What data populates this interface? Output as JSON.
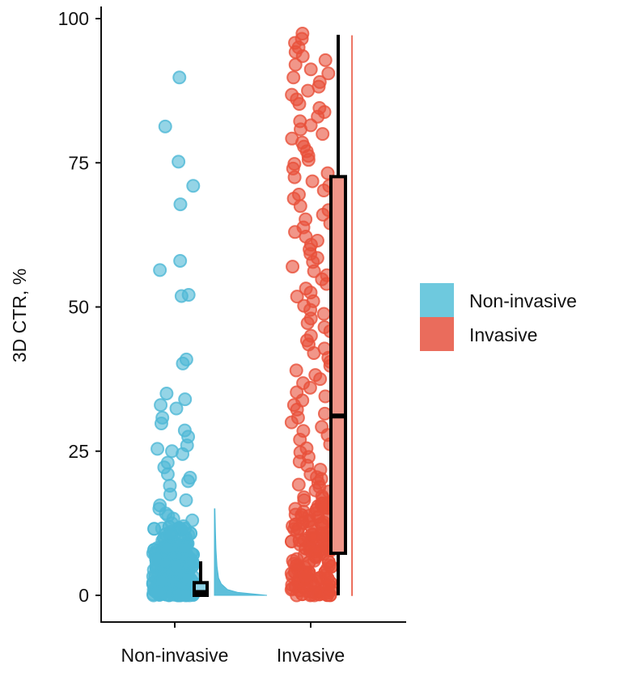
{
  "chart_data": {
    "type": "raincloud",
    "title": "",
    "xlabel": "",
    "ylabel": "3D CTR, %",
    "ylim": [
      0,
      100
    ],
    "yticks": [
      "0",
      "25",
      "50",
      "75",
      "100"
    ],
    "categories": [
      "Non-invasive",
      "Invasive"
    ],
    "legend": {
      "placement": "right",
      "entries": [
        "Non-invasive",
        "Invasive"
      ]
    },
    "colors": {
      "Non-invasive": "#4db8d6",
      "Invasive": "#e8503a",
      "legend_non_invasive": "#6ec9de",
      "legend_invasive": "#ea6c5c",
      "box_invasive": "#ef9588",
      "box_non_invasive": "#8fd3e6"
    },
    "series": [
      {
        "name": "Non-invasive",
        "box": {
          "min": 0,
          "q1": 0,
          "median": 0.5,
          "q3": 2.2,
          "max": 5.9
        },
        "density": {
          "y": [
            0,
            0.5,
            1,
            2,
            3,
            5,
            8,
            11,
            13,
            15
          ],
          "width": [
            1,
            0.45,
            0.25,
            0.13,
            0.08,
            0.05,
            0.03,
            0.02,
            0.015,
            0.01
          ]
        },
        "points": [
          89.8,
          81.3,
          75.2,
          71,
          67.8,
          58,
          56.4,
          52.1,
          51.9,
          40.9,
          40.2,
          35,
          34,
          33,
          32.4,
          30.8,
          29.8,
          28.6,
          27.5,
          26,
          25.4,
          25,
          24.5,
          23,
          22.2,
          21,
          20.4,
          19.8,
          19,
          17.5,
          16.5,
          15.6,
          15,
          14.2,
          13.8,
          13.3,
          13,
          12.5,
          12,
          11.6,
          11,
          10.5,
          10,
          9.6,
          9.2,
          9,
          8.6,
          8.2,
          8,
          7.6,
          7.2,
          7,
          6.6,
          6.2,
          6,
          5.6,
          5.2,
          5,
          4.7,
          4.4,
          4.1,
          3.8,
          3.6,
          3.3,
          3,
          2.8,
          2.6,
          2.4,
          2.2,
          2,
          1.8,
          1.6,
          1.4,
          1.2,
          1,
          0.9,
          0.8,
          0.7,
          0.6,
          0.5,
          0.4,
          0.3,
          0.2,
          0.1,
          0,
          0,
          0,
          0,
          0,
          0,
          0,
          0,
          0.5,
          1,
          1.5,
          2,
          2.5,
          3,
          3.5,
          4,
          4.5,
          5,
          5.5,
          6,
          6.5,
          7,
          7.5,
          8,
          8.5,
          9,
          9.5,
          10,
          10.5,
          11,
          0.2,
          0.8,
          1.3,
          1.7,
          2.1,
          3.2,
          4.2,
          5.3,
          6.4,
          7.3
        ]
      },
      {
        "name": "Invasive",
        "box": {
          "min": 0,
          "q1": 7.3,
          "median": 31.1,
          "q3": 72.6,
          "max": 97.2
        },
        "density": {
          "y": [
            0,
            20,
            40,
            60,
            80,
            97
          ],
          "width": [
            0.05,
            0.04,
            0.03,
            0.03,
            0.03,
            0.02
          ]
        },
        "points": [
          97.4,
          96.5,
          95.8,
          95,
          94.2,
          93.5,
          92.8,
          92,
          91.2,
          90.5,
          89.8,
          89,
          88.2,
          87.5,
          86.8,
          86,
          85.2,
          84.5,
          83.8,
          83,
          82.2,
          81.5,
          80.8,
          80,
          79.2,
          78.5,
          77.8,
          77,
          76.2,
          75.5,
          74.8,
          74,
          73.2,
          72.5,
          71.8,
          71,
          70.2,
          69.5,
          68.8,
          67.5,
          66.8,
          66,
          65.2,
          64.5,
          63.8,
          63,
          62.2,
          61.5,
          60.8,
          60,
          59.2,
          58.5,
          57.8,
          57,
          56.2,
          55.5,
          54.8,
          54,
          53.2,
          52.5,
          51.8,
          51,
          50.2,
          49.5,
          48.8,
          48,
          47.2,
          46.5,
          45.8,
          45,
          44.2,
          43.5,
          42.8,
          42,
          41.2,
          40.5,
          39.8,
          39,
          38.2,
          37.5,
          36.8,
          36,
          35.2,
          34.5,
          33.8,
          33,
          32.2,
          31.5,
          30.8,
          30,
          29.2,
          28.5,
          27.8,
          27,
          26.2,
          25.5,
          24.8,
          24,
          23.2,
          22.5,
          21.8,
          21,
          20.2,
          19.5,
          18.8,
          18,
          17.2,
          16.5,
          15.8,
          15,
          14.2,
          13.5,
          12.8,
          12,
          11.2,
          10.5,
          9.8,
          9,
          8.2,
          7.5,
          6.8,
          6,
          5.2,
          4.5,
          3.8,
          3,
          2.2,
          1.5,
          0.8,
          0,
          0,
          0.3,
          0.6,
          1,
          1.3,
          1.8,
          2.5,
          3.3,
          4,
          4.8,
          5.5,
          6.3,
          7,
          7.8,
          8.5,
          9.3,
          10,
          10.8,
          11.5,
          12.3,
          13,
          13.8,
          14.5,
          15.3,
          16,
          17,
          18.2,
          19.2,
          20.5,
          0.1,
          0.5,
          1.2,
          2,
          2.8,
          3.5,
          4.3,
          5,
          6,
          7.2,
          8,
          9,
          10.3,
          11,
          12.6,
          14,
          15.5,
          16.8,
          0,
          1.6,
          3.1,
          4.6,
          6.6,
          8.8
        ]
      }
    ]
  }
}
